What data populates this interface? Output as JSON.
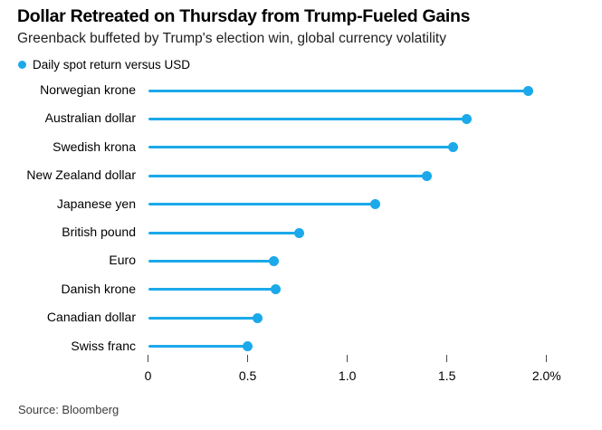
{
  "header": {
    "title": "Dollar Retreated on Thursday from Trump-Fueled Gains",
    "subtitle": "Greenback buffeted by Trump's election win, global currency volatility"
  },
  "legend": {
    "label": "Daily spot return versus USD"
  },
  "footer": {
    "source": "Source: Bloomberg"
  },
  "colors": {
    "accent": "#1BA9EA",
    "tick": "#4a4a4a",
    "text": "#000000",
    "muted": "#3d3d3d"
  },
  "chart_data": {
    "type": "bar",
    "style": "lollipop",
    "orientation": "horizontal",
    "title": "Dollar Retreated on Thursday from Trump-Fueled Gains",
    "subtitle": "Greenback buffeted by Trump's election win, global currency volatility",
    "series_name": "Daily spot return versus USD",
    "categories": [
      "Norwegian krone",
      "Australian dollar",
      "Swedish krona",
      "New Zealand dollar",
      "Japanese yen",
      "British pound",
      "Euro",
      "Danish krone",
      "Canadian dollar",
      "Swiss franc"
    ],
    "values": [
      1.91,
      1.6,
      1.53,
      1.4,
      1.14,
      0.76,
      0.63,
      0.64,
      0.55,
      0.5
    ],
    "unit": "%",
    "xlabel": "",
    "ylabel": "",
    "xlim": [
      0,
      2.0
    ],
    "x_ticks": [
      0,
      0.5,
      1.0,
      1.5,
      2.0
    ],
    "x_tick_labels": [
      "0",
      "0.5",
      "1.0",
      "1.5",
      "2.0%"
    ],
    "grid": false,
    "legend_position": "top-left"
  }
}
